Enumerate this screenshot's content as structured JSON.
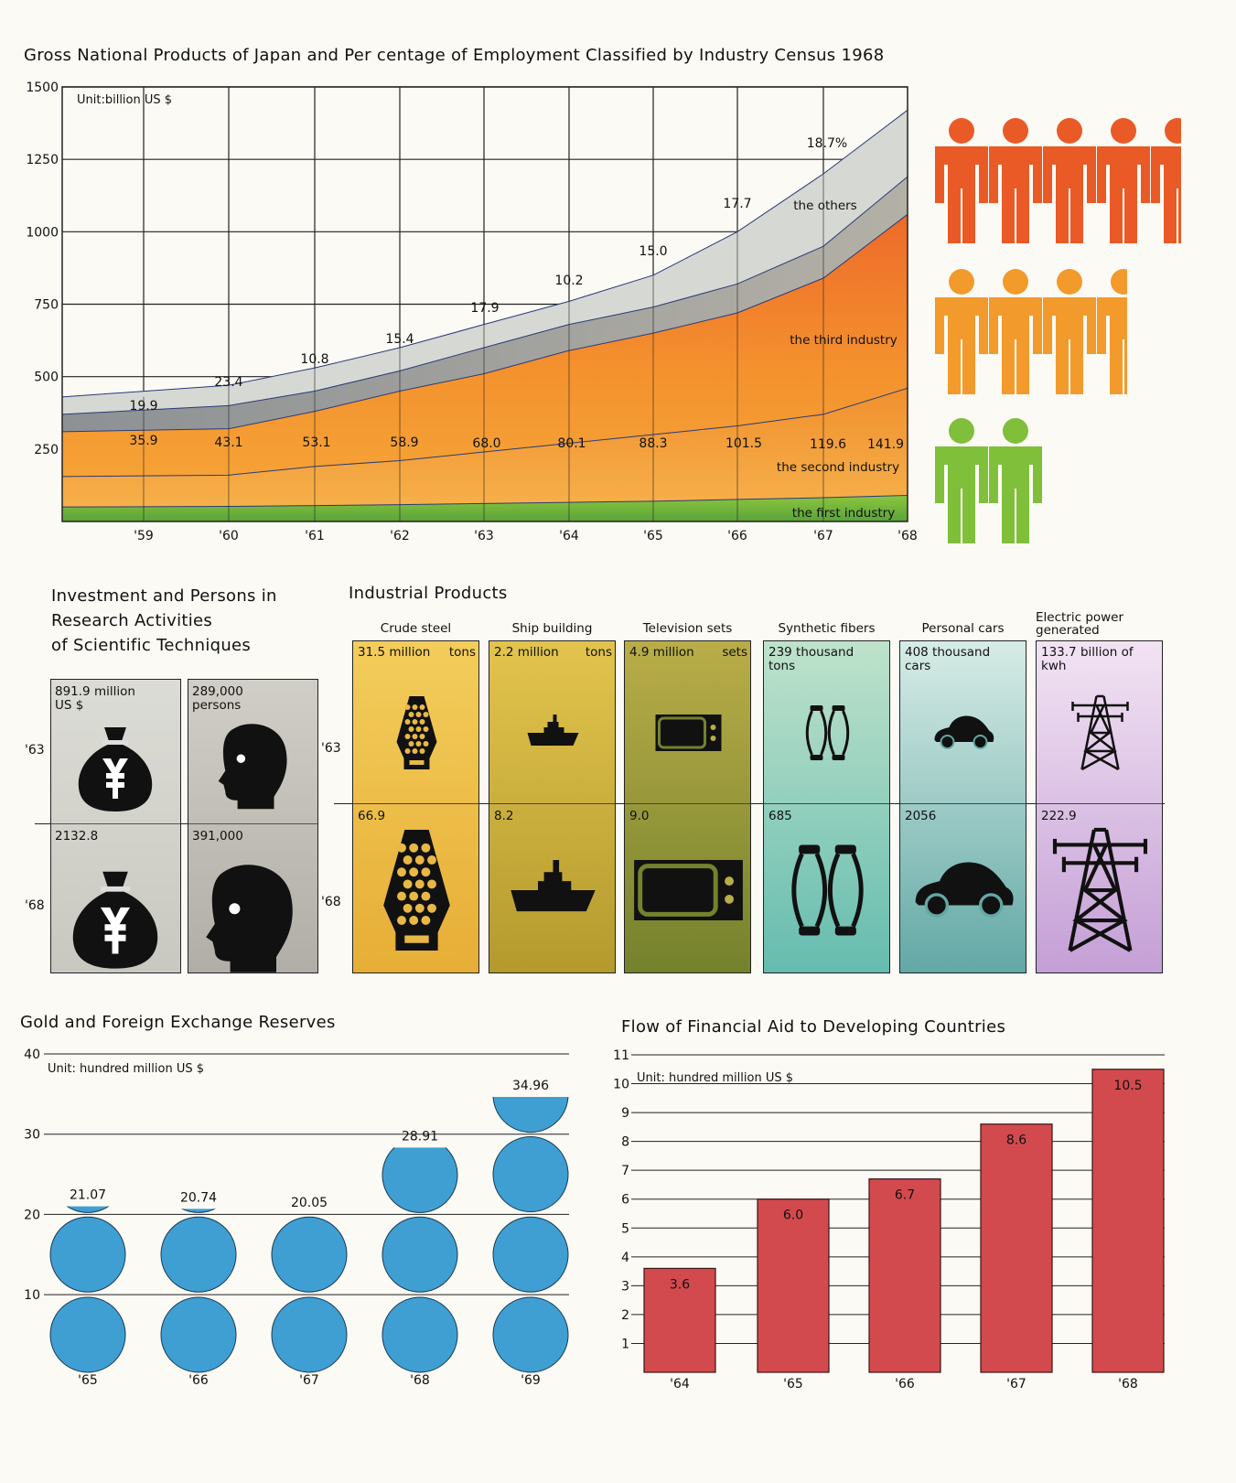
{
  "titles": {
    "gnp": "Gross National Products of Japan and Per  centage of Employment Classified by Industry Census 1968",
    "research": "Investment and Persons in\nResearch Activities\nof Scientific Techniques",
    "industrial": "Industrial Products",
    "gold": "Gold and Foreign Exchange Reserves",
    "aid": "Flow of Financial Aid to Developing Countries"
  },
  "chart_data": [
    {
      "id": "gnp",
      "type": "area",
      "unit_label": "Unit:billion  US $",
      "categories": [
        "'59",
        "'60",
        "'61",
        "'62",
        "'63",
        "'64",
        "'65",
        "'66",
        "'67",
        "'68"
      ],
      "y_ticks": [
        250,
        500,
        750,
        1000,
        1250,
        1500
      ],
      "ylim": [
        0,
        1500
      ],
      "series": [
        {
          "name": "the first industry",
          "values": [
            50,
            52,
            55,
            58,
            62,
            66,
            70,
            76,
            82,
            90
          ]
        },
        {
          "name": "the second industry",
          "values": [
            155,
            160,
            190,
            210,
            240,
            270,
            300,
            330,
            370,
            460
          ]
        },
        {
          "name": "the third industry",
          "values": [
            310,
            320,
            380,
            450,
            510,
            590,
            650,
            720,
            840,
            1060
          ]
        },
        {
          "name": "the others",
          "values": [
            370,
            400,
            450,
            520,
            600,
            680,
            740,
            820,
            950,
            1190
          ]
        },
        {
          "name": "",
          "values": [
            430,
            470,
            530,
            600,
            680,
            760,
            850,
            1000,
            1200,
            1420
          ]
        }
      ],
      "gnp_values": [
        "35.9",
        "43.1",
        "53.1",
        "58.9",
        "68.0",
        "80.1",
        "88.3",
        "101.5",
        "119.6",
        "141.9"
      ],
      "growth_labels": [
        "19.9",
        "23.4",
        "10.8",
        "15.4",
        "17.9",
        "10.2",
        "15.0",
        "17.7",
        "18.7%"
      ],
      "series_labels": [
        "the first industry",
        "the second industry",
        "the third industry",
        "the others"
      ],
      "employment_figures": [
        {
          "count": 4.5,
          "color": "#ea5a27"
        },
        {
          "count": 3.5,
          "color": "#f29a2c"
        },
        {
          "count": 2,
          "color": "#7fbf3a"
        }
      ]
    },
    {
      "id": "research",
      "type": "table",
      "rows": [
        "'63",
        "'68"
      ],
      "columns": [
        {
          "name": "investment",
          "values": [
            "891.9 million\nUS $",
            "2132.8"
          ],
          "icon": "money-bag-icon"
        },
        {
          "name": "persons",
          "values": [
            "289,000\npersons",
            "391,000"
          ],
          "icon": "head-icon"
        }
      ]
    },
    {
      "id": "industrial",
      "type": "table",
      "rows": [
        "'63",
        "'68"
      ],
      "products": [
        {
          "name": "Crude steel",
          "v63": "31.5 million",
          "unit": "tons",
          "v68": "66.9",
          "icon": "blast-furnace-icon",
          "color1": "#f3cd5b",
          "color2": "#e6ae36"
        },
        {
          "name": "Ship building",
          "v63": "2.2 million",
          "unit": "tons",
          "v68": "8.2",
          "icon": "ship-icon",
          "color1": "#e2c44d",
          "color2": "#b49a2e"
        },
        {
          "name": "Television sets",
          "v63": "4.9 million",
          "unit": "sets",
          "v68": "9.0",
          "icon": "tv-icon",
          "color1": "#b9ad48",
          "color2": "#74822d"
        },
        {
          "name": "Synthetic fibers",
          "v63": "239 thousand\ntons",
          "unit": "",
          "v68": "685",
          "icon": "spool-icon",
          "color1": "#bfe2cb",
          "color2": "#65bcaf"
        },
        {
          "name": "Personal cars",
          "v63": "408 thousand\ncars",
          "unit": "",
          "v68": "2056",
          "icon": "car-icon",
          "color1": "#d7ece6",
          "color2": "#62a8a5"
        },
        {
          "name": "Electric power\ngenerated",
          "v63": "133.7 billion of\nkwh",
          "unit": "",
          "v68": "222.9",
          "icon": "pylon-icon",
          "color1": "#f2e3f3",
          "color2": "#c49fd6"
        }
      ]
    },
    {
      "id": "gold",
      "type": "bar",
      "unit_label": "Unit: hundred  million US $",
      "categories": [
        "'65",
        "'66",
        "'67",
        "'68",
        "'69"
      ],
      "values": [
        21.07,
        20.74,
        20.05,
        28.91,
        34.96
      ],
      "labels": [
        "21.07",
        "20.74",
        "20.05",
        "28.91",
        "34.96"
      ],
      "y_ticks": [
        10,
        20,
        30,
        40
      ],
      "ylim": [
        0,
        40
      ],
      "color": "#3f9fd3"
    },
    {
      "id": "aid",
      "type": "bar",
      "unit_label": "Unit: hundred  million US $",
      "categories": [
        "'64",
        "'65",
        "'66",
        "'67",
        "'68"
      ],
      "values": [
        3.6,
        6.0,
        6.7,
        8.6,
        10.5
      ],
      "labels": [
        "3.6",
        "6.0",
        "6.7",
        "8.6",
        "10.5"
      ],
      "y_ticks": [
        1,
        2,
        3,
        4,
        5,
        6,
        7,
        8,
        9,
        10,
        11
      ],
      "ylim": [
        0,
        11
      ],
      "color": "#d24a4e"
    }
  ]
}
